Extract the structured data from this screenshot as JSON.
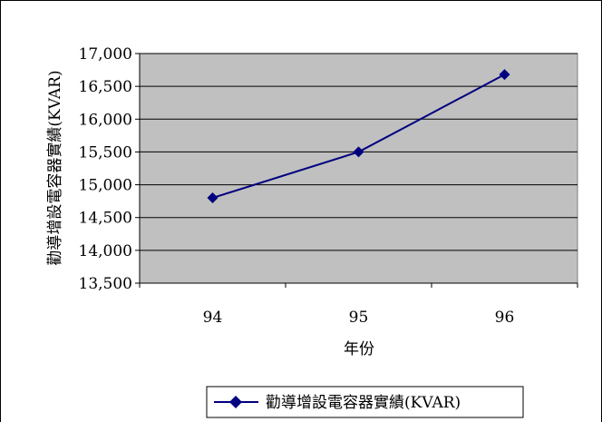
{
  "chart_data": {
    "type": "line",
    "title": "",
    "xlabel": "年份",
    "ylabel": "勸導增設電容器實績(KVAR)",
    "categories": [
      "94",
      "95",
      "96"
    ],
    "series": [
      {
        "name": "勸導增設電容器實績(KVAR)",
        "values": [
          14800,
          15500,
          16680
        ],
        "color": "#000080",
        "marker": "diamond"
      }
    ],
    "ylim": [
      13500,
      17000
    ],
    "yticks": [
      "13,500",
      "14,000",
      "14,500",
      "15,000",
      "15,500",
      "16,000",
      "16,500",
      "17,000"
    ],
    "ytick_values": [
      13500,
      14000,
      14500,
      15000,
      15500,
      16000,
      16500,
      17000
    ],
    "grid": true,
    "plot_background": "#c0c0c0",
    "legend": "bottom"
  }
}
